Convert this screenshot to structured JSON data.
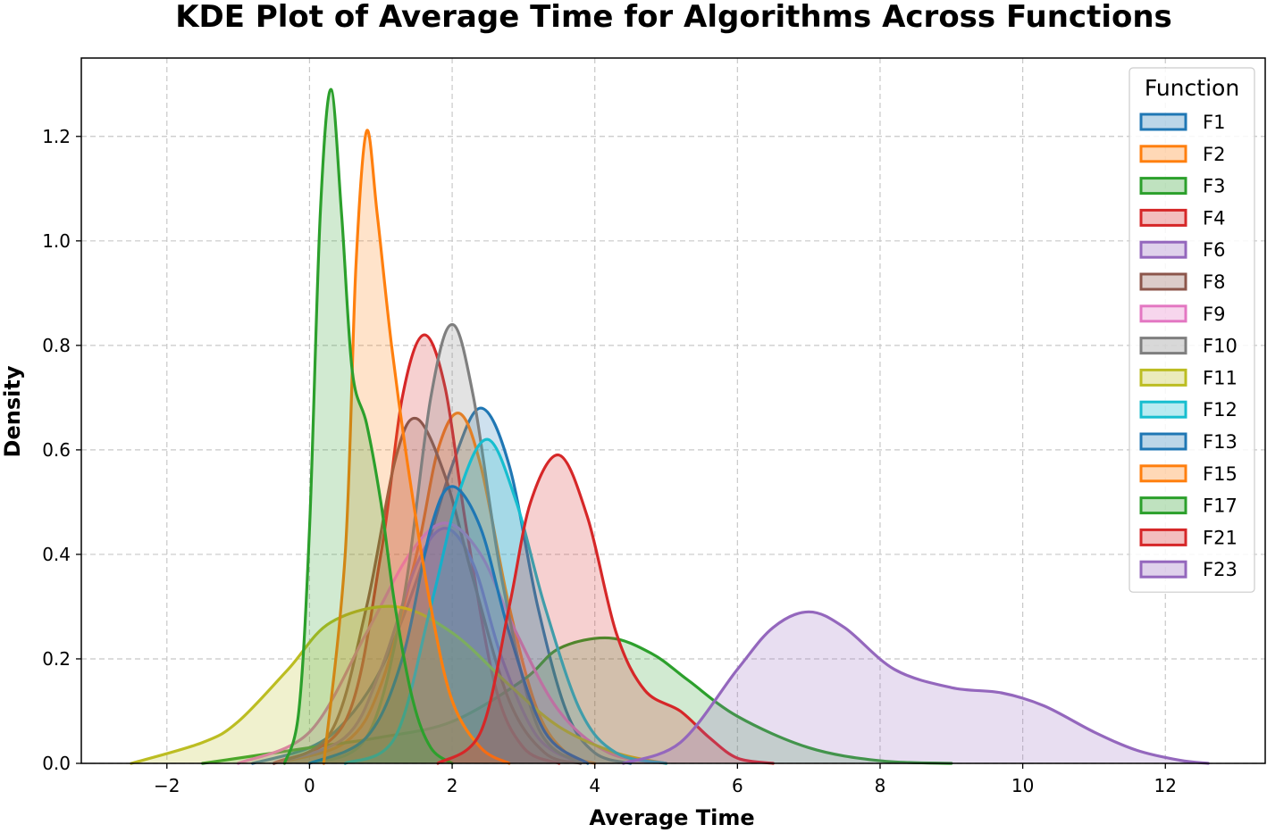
{
  "chart_data": {
    "type": "area",
    "title": "KDE Plot of Average Time for Algorithms Across Functions",
    "xlabel": "Average Time",
    "ylabel": "Density",
    "xlim": [
      -3.2,
      13.4
    ],
    "ylim": [
      0,
      1.35
    ],
    "x_ticks": [
      -2,
      0,
      2,
      4,
      6,
      8,
      10,
      12
    ],
    "x_tick_labels": [
      "−2",
      "0",
      "2",
      "4",
      "6",
      "8",
      "10",
      "12"
    ],
    "y_ticks": [
      0.0,
      0.2,
      0.4,
      0.6,
      0.8,
      1.0,
      1.2
    ],
    "y_tick_labels": [
      "0.0",
      "0.2",
      "0.4",
      "0.6",
      "0.8",
      "1.0",
      "1.2"
    ],
    "grid": true,
    "legend": {
      "title": "Function",
      "placement": "top-right"
    },
    "series": [
      {
        "name": "F1",
        "color": "#1f77b4",
        "x": [
          -0.8,
          0,
          0.5,
          1.0,
          1.5,
          2.0,
          2.4,
          2.8,
          3.2,
          3.6,
          4.0,
          4.5
        ],
        "y": [
          0,
          0.03,
          0.08,
          0.18,
          0.35,
          0.57,
          0.68,
          0.57,
          0.3,
          0.1,
          0.02,
          0
        ]
      },
      {
        "name": "F2",
        "color": "#ff7f0e",
        "x": [
          -0.5,
          0.5,
          1.0,
          1.5,
          1.8,
          2.1,
          2.4,
          2.8,
          3.2,
          3.6,
          4.0
        ],
        "y": [
          0,
          0.04,
          0.15,
          0.4,
          0.6,
          0.67,
          0.57,
          0.3,
          0.1,
          0.02,
          0
        ]
      },
      {
        "name": "F3",
        "color": "#2ca02c",
        "x": [
          -1.5,
          0,
          1.0,
          2.0,
          3.0,
          3.5,
          4.2,
          4.8,
          5.3,
          6.0,
          7.0,
          8.0,
          9.0
        ],
        "y": [
          0,
          0.03,
          0.05,
          0.08,
          0.16,
          0.22,
          0.24,
          0.21,
          0.16,
          0.09,
          0.03,
          0.005,
          0
        ]
      },
      {
        "name": "F4",
        "color": "#d62728",
        "x": [
          -0.5,
          0.5,
          1.0,
          1.3,
          1.6,
          1.9,
          2.2,
          2.6,
          3.0,
          3.5
        ],
        "y": [
          0,
          0.08,
          0.4,
          0.7,
          0.82,
          0.72,
          0.45,
          0.15,
          0.03,
          0
        ]
      },
      {
        "name": "F6",
        "color": "#9467bd",
        "x": [
          -0.5,
          0.5,
          1.0,
          1.5,
          1.9,
          2.3,
          2.7,
          3.2,
          3.8
        ],
        "y": [
          0,
          0.05,
          0.18,
          0.38,
          0.45,
          0.38,
          0.2,
          0.05,
          0
        ]
      },
      {
        "name": "F8",
        "color": "#8c564b",
        "x": [
          -0.5,
          0.3,
          0.8,
          1.2,
          1.5,
          1.9,
          2.3,
          2.8,
          3.3,
          3.8
        ],
        "y": [
          0,
          0.06,
          0.3,
          0.58,
          0.66,
          0.55,
          0.35,
          0.12,
          0.02,
          0
        ]
      },
      {
        "name": "F9",
        "color": "#e377c2",
        "x": [
          -1.0,
          0,
          0.8,
          1.4,
          1.9,
          2.4,
          2.9,
          3.5,
          4.2,
          5.0
        ],
        "y": [
          0,
          0.06,
          0.25,
          0.4,
          0.46,
          0.4,
          0.25,
          0.1,
          0.02,
          0
        ]
      },
      {
        "name": "F10",
        "color": "#7f7f7f",
        "x": [
          0,
          0.8,
          1.3,
          1.7,
          2.0,
          2.3,
          2.7,
          3.2,
          3.8
        ],
        "y": [
          0,
          0.05,
          0.3,
          0.7,
          0.84,
          0.7,
          0.35,
          0.07,
          0
        ]
      },
      {
        "name": "F11",
        "color": "#bcbd22",
        "x": [
          -2.5,
          -1.5,
          -1.0,
          -0.3,
          0.3,
          1.2,
          2.0,
          2.8,
          3.5,
          4.3,
          5.0
        ],
        "y": [
          0,
          0.04,
          0.08,
          0.18,
          0.27,
          0.3,
          0.25,
          0.15,
          0.07,
          0.02,
          0
        ]
      },
      {
        "name": "F12",
        "color": "#17becf",
        "x": [
          0.5,
          1.2,
          1.7,
          2.1,
          2.5,
          2.9,
          3.3,
          3.8,
          4.3,
          5.0
        ],
        "y": [
          0,
          0.05,
          0.3,
          0.52,
          0.62,
          0.5,
          0.3,
          0.1,
          0.02,
          0
        ]
      },
      {
        "name": "F13",
        "color": "#1f77b4",
        "x": [
          0,
          0.8,
          1.3,
          1.7,
          2.0,
          2.4,
          2.8,
          3.3,
          3.9
        ],
        "y": [
          0,
          0.05,
          0.2,
          0.45,
          0.53,
          0.45,
          0.25,
          0.06,
          0
        ]
      },
      {
        "name": "F15",
        "color": "#ff7f0e",
        "x": [
          0.2,
          0.5,
          0.65,
          0.8,
          0.95,
          1.15,
          1.4,
          1.7,
          2.0,
          2.4,
          2.8
        ],
        "y": [
          0,
          0.4,
          0.95,
          1.21,
          1.05,
          0.8,
          0.55,
          0.3,
          0.12,
          0.03,
          0
        ]
      },
      {
        "name": "F17",
        "color": "#2ca02c",
        "x": [
          -0.35,
          -0.15,
          0.0,
          0.15,
          0.3,
          0.45,
          0.6,
          0.8,
          1.0,
          1.2,
          1.45,
          1.7,
          2.0
        ],
        "y": [
          0,
          0.1,
          0.45,
          1.05,
          1.29,
          1.05,
          0.75,
          0.65,
          0.5,
          0.3,
          0.12,
          0.03,
          0
        ]
      },
      {
        "name": "F21",
        "color": "#d62728",
        "x": [
          1.8,
          2.4,
          2.8,
          3.1,
          3.5,
          3.9,
          4.3,
          4.7,
          5.2,
          5.6,
          6.0,
          6.5
        ],
        "y": [
          0,
          0.06,
          0.3,
          0.5,
          0.59,
          0.47,
          0.25,
          0.14,
          0.1,
          0.05,
          0.01,
          0
        ]
      },
      {
        "name": "F23",
        "color": "#9467bd",
        "x": [
          4.4,
          5.2,
          6.0,
          6.5,
          7.0,
          7.5,
          8.2,
          9.0,
          9.7,
          10.3,
          11.0,
          11.6,
          12.2,
          12.6
        ],
        "y": [
          0,
          0.04,
          0.18,
          0.26,
          0.29,
          0.26,
          0.18,
          0.145,
          0.135,
          0.11,
          0.06,
          0.025,
          0.006,
          0
        ]
      }
    ]
  }
}
